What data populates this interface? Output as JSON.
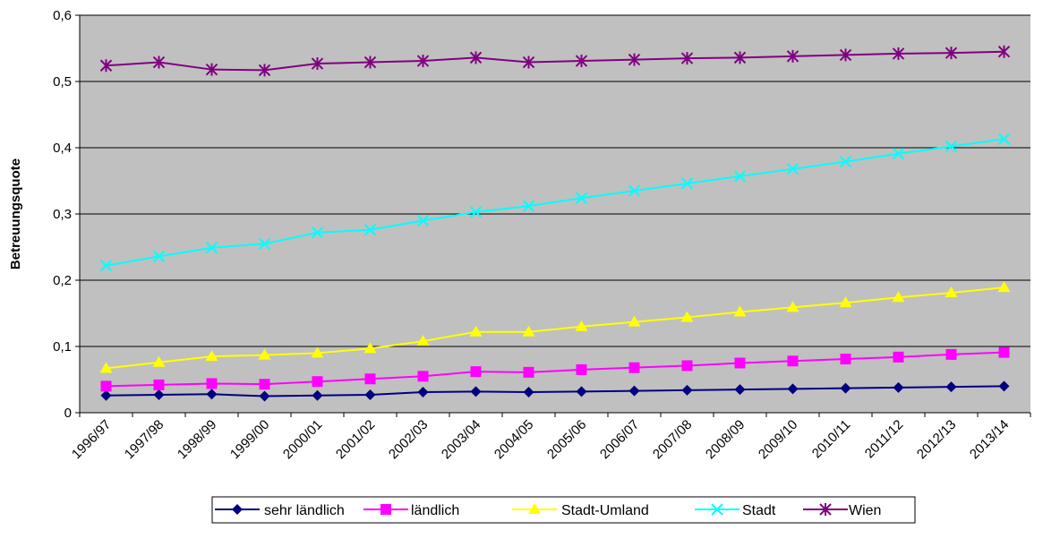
{
  "chart_data": {
    "type": "line",
    "title": "",
    "xlabel": "",
    "ylabel": "Betreuungsquote",
    "ylim": [
      0,
      0.6
    ],
    "yticks": [
      "0",
      "0,1",
      "0,2",
      "0,3",
      "0,4",
      "0,5",
      "0,6"
    ],
    "grid": true,
    "legend_position": "bottom",
    "categories": [
      "1996/97",
      "1997/98",
      "1998/99",
      "1999/00",
      "2000/01",
      "2001/02",
      "2002/03",
      "2003/04",
      "2004/05",
      "2005/06",
      "2006/07",
      "2007/08",
      "2008/09",
      "2009/10",
      "2010/11",
      "2011/12",
      "2012/13",
      "2013/14"
    ],
    "series": [
      {
        "name": "sehr ländlich",
        "color": "#000080",
        "marker": "diamond",
        "values": [
          0.026,
          0.027,
          0.028,
          0.025,
          0.026,
          0.027,
          0.031,
          0.032,
          0.031,
          0.032,
          0.033,
          0.034,
          0.035,
          0.036,
          0.037,
          0.038,
          0.039,
          0.04
        ]
      },
      {
        "name": "ländlich",
        "color": "#ff00ff",
        "marker": "square",
        "values": [
          0.04,
          0.042,
          0.044,
          0.043,
          0.047,
          0.051,
          0.055,
          0.062,
          0.061,
          0.065,
          0.068,
          0.071,
          0.075,
          0.078,
          0.081,
          0.084,
          0.088,
          0.091
        ]
      },
      {
        "name": "Stadt-Umland",
        "color": "#ffff00",
        "marker": "triangle",
        "values": [
          0.067,
          0.076,
          0.085,
          0.087,
          0.09,
          0.097,
          0.108,
          0.122,
          0.122,
          0.13,
          0.137,
          0.144,
          0.152,
          0.159,
          0.166,
          0.174,
          0.181,
          0.189
        ]
      },
      {
        "name": "Stadt",
        "color": "#00ffff",
        "marker": "x",
        "values": [
          0.222,
          0.236,
          0.249,
          0.255,
          0.272,
          0.276,
          0.29,
          0.303,
          0.312,
          0.324,
          0.335,
          0.346,
          0.357,
          0.368,
          0.379,
          0.391,
          0.402,
          0.413
        ]
      },
      {
        "name": "Wien",
        "color": "#800080",
        "marker": "star",
        "values": [
          0.524,
          0.529,
          0.518,
          0.517,
          0.527,
          0.529,
          0.531,
          0.536,
          0.529,
          0.531,
          0.533,
          0.535,
          0.536,
          0.538,
          0.54,
          0.542,
          0.543,
          0.545
        ]
      }
    ]
  }
}
